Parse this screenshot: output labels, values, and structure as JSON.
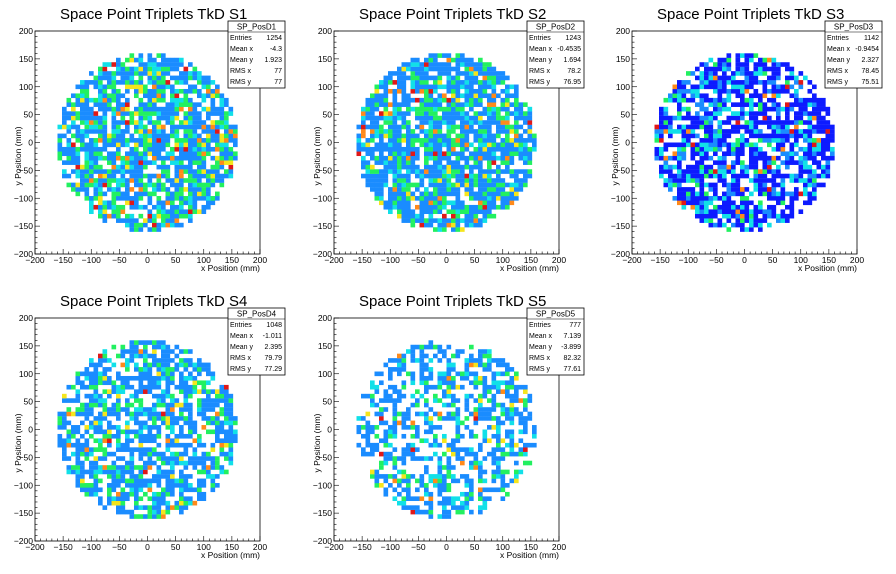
{
  "colors": {
    "palette": [
      "#0d1bff",
      "#1a8cff",
      "#11e0e8",
      "#22f060",
      "#f5e51c",
      "#ff8a1a",
      "#e01818"
    ]
  },
  "chart_data": [
    {
      "type": "heatmap",
      "title": "Space Point Triplets TkD S1",
      "xlabel": "x Position (mm)",
      "ylabel": "y Position (mm)",
      "xlim": [
        -200,
        200
      ],
      "ylim": [
        -200,
        200
      ],
      "xticks": [
        "−200",
        "−150",
        "−100",
        "−50",
        "0",
        "50",
        "100",
        "150",
        "200"
      ],
      "yticks": [
        "−200",
        "−150",
        "−100",
        "−50",
        "0",
        "50",
        "100",
        "150",
        "200"
      ],
      "stats": {
        "name": "SP_PosD1",
        "rows": [
          {
            "label": "Entries",
            "value": "1254"
          },
          {
            "label": "Mean x",
            "value": "-4.3"
          },
          {
            "label": "Mean y",
            "value": "1.923"
          },
          {
            "label": "RMS x",
            "value": "77"
          },
          {
            "label": "RMS y",
            "value": "77"
          }
        ]
      },
      "entries": 1254,
      "radius": 160,
      "style": "s1"
    },
    {
      "type": "heatmap",
      "title": "Space Point Triplets TkD S2",
      "xlabel": "x Position (mm)",
      "ylabel": "y Position (mm)",
      "xlim": [
        -200,
        200
      ],
      "ylim": [
        -200,
        200
      ],
      "xticks": [
        "−200",
        "−150",
        "−100",
        "−50",
        "0",
        "50",
        "100",
        "150",
        "200"
      ],
      "yticks": [
        "−200",
        "−150",
        "−100",
        "−50",
        "0",
        "50",
        "100",
        "150",
        "200"
      ],
      "stats": {
        "name": "SP_PosD2",
        "rows": [
          {
            "label": "Entries",
            "value": "1243"
          },
          {
            "label": "Mean x",
            "value": "-0.4535"
          },
          {
            "label": "Mean y",
            "value": "1.694"
          },
          {
            "label": "RMS x",
            "value": "78.2"
          },
          {
            "label": "RMS y",
            "value": "76.95"
          }
        ]
      },
      "entries": 1243,
      "radius": 160,
      "style": "s2"
    },
    {
      "type": "heatmap",
      "title": "Space Point Triplets TkD S3",
      "xlabel": "x Position (mm)",
      "ylabel": "y Position (mm)",
      "xlim": [
        -200,
        200
      ],
      "ylim": [
        -200,
        200
      ],
      "xticks": [
        "−200",
        "−150",
        "−100",
        "−50",
        "0",
        "50",
        "100",
        "150",
        "200"
      ],
      "yticks": [
        "−200",
        "−150",
        "−100",
        "−50",
        "0",
        "50",
        "100",
        "150",
        "200"
      ],
      "stats": {
        "name": "SP_PosD3",
        "rows": [
          {
            "label": "Entries",
            "value": "1142"
          },
          {
            "label": "Mean x",
            "value": "-0.9454"
          },
          {
            "label": "Mean y",
            "value": "2.327"
          },
          {
            "label": "RMS x",
            "value": "78.45"
          },
          {
            "label": "RMS y",
            "value": "75.51"
          }
        ]
      },
      "entries": 1142,
      "radius": 160,
      "style": "s3"
    },
    {
      "type": "heatmap",
      "title": "Space Point Triplets TkD S4",
      "xlabel": "x Position (mm)",
      "ylabel": "y Position (mm)",
      "xlim": [
        -200,
        200
      ],
      "ylim": [
        -200,
        200
      ],
      "xticks": [
        "−200",
        "−150",
        "−100",
        "−50",
        "0",
        "50",
        "100",
        "150",
        "200"
      ],
      "yticks": [
        "−200",
        "−150",
        "−100",
        "−50",
        "0",
        "50",
        "100",
        "150",
        "200"
      ],
      "stats": {
        "name": "SP_PosD4",
        "rows": [
          {
            "label": "Entries",
            "value": "1048"
          },
          {
            "label": "Mean x",
            "value": "-1.011"
          },
          {
            "label": "Mean y",
            "value": "2.395"
          },
          {
            "label": "RMS x",
            "value": "79.79"
          },
          {
            "label": "RMS y",
            "value": "77.29"
          }
        ]
      },
      "entries": 1048,
      "radius": 160,
      "style": "s4"
    },
    {
      "type": "heatmap",
      "title": "Space Point Triplets TkD S5",
      "xlabel": "x Position (mm)",
      "ylabel": "y Position (mm)",
      "xlim": [
        -200,
        200
      ],
      "ylim": [
        -200,
        200
      ],
      "xticks": [
        "−200",
        "−150",
        "−100",
        "−50",
        "0",
        "50",
        "100",
        "150",
        "200"
      ],
      "yticks": [
        "−200",
        "−150",
        "−100",
        "−50",
        "0",
        "50",
        "100",
        "150",
        "200"
      ],
      "stats": {
        "name": "SP_PosD5",
        "rows": [
          {
            "label": "Entries",
            "value": "777"
          },
          {
            "label": "Mean x",
            "value": "7.139"
          },
          {
            "label": "Mean y",
            "value": "-3.899"
          },
          {
            "label": "RMS x",
            "value": "82.32"
          },
          {
            "label": "RMS y",
            "value": "77.61"
          }
        ]
      },
      "entries": 777,
      "radius": 160,
      "style": "s5"
    }
  ]
}
